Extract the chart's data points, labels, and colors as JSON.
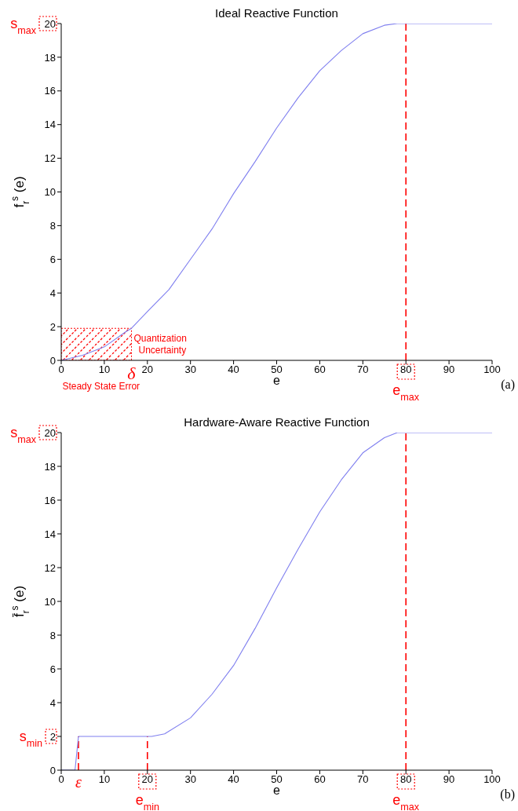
{
  "chart_data": [
    {
      "type": "line",
      "title": "Ideal Reactive Function",
      "xlabel": "e",
      "ylabel": "f$_{r}$$^{s}$ (e)",
      "color": "#7f7fef",
      "marker": "none",
      "line_style": "solid",
      "x": [
        0,
        5,
        10,
        15,
        16.3,
        20,
        25,
        30,
        35,
        40,
        45,
        50,
        55,
        60,
        65,
        70,
        75,
        78,
        100
      ],
      "values": [
        0,
        0.3,
        0.8,
        1.7,
        1.9,
        2.9,
        4.2,
        6,
        7.8,
        9.9,
        11.8,
        13.8,
        15.6,
        17.2,
        18.4,
        19.4,
        19.9,
        20,
        20
      ],
      "xlim": [
        0,
        100
      ],
      "ylim": [
        0,
        20
      ],
      "xticks": [
        0,
        10,
        20,
        30,
        40,
        50,
        60,
        70,
        80,
        90,
        100
      ],
      "yticks": [
        0,
        2,
        4,
        6,
        8,
        10,
        12,
        14,
        16,
        18,
        20
      ],
      "ref_lines": [
        {
          "axis": "x",
          "value": 80,
          "label": "e$_{max}$",
          "color": "#ff0000",
          "line_style": "dashed"
        }
      ],
      "bands": [
        {
          "axis": "x",
          "from": 0,
          "to": 16.3,
          "label": "Steady State Error",
          "color": "#ff0000"
        }
      ],
      "annotations": [
        "s$_{max}$",
        "Quantization Uncertainty",
        {
          "text": "δ",
          "x": 16.3,
          "y": 0
        },
        "(a)"
      ]
    },
    {
      "type": "line",
      "title": "Hardware-Aware Reactive Function",
      "xlabel": "e",
      "ylabel": "f̄$_{r}$$^{s}$ (e)",
      "color": "#7f7fef",
      "marker": "none",
      "line_style": "solid",
      "x": [
        0,
        3.2,
        4,
        20,
        21,
        24,
        30,
        35,
        40,
        45,
        50,
        55,
        60,
        65,
        70,
        75,
        78,
        100
      ],
      "values": [
        0,
        0,
        2,
        2,
        2,
        2.15,
        3.1,
        4.5,
        6.2,
        8.4,
        10.8,
        13.1,
        15.3,
        17.2,
        18.8,
        19.7,
        20,
        20
      ],
      "xlim": [
        0,
        100
      ],
      "ylim": [
        0,
        20
      ],
      "xticks": [
        0,
        10,
        20,
        30,
        40,
        50,
        60,
        70,
        80,
        90,
        100
      ],
      "yticks": [
        0,
        2,
        4,
        6,
        8,
        10,
        12,
        14,
        16,
        18,
        20
      ],
      "ref_lines": [
        {
          "axis": "x",
          "value": 4,
          "label": "ε",
          "color": "#ff0000",
          "line_style": "dashed"
        },
        {
          "axis": "x",
          "value": 20,
          "label": "e$_{min}$",
          "color": "#ff0000",
          "line_style": "dashed"
        },
        {
          "axis": "x",
          "value": 80,
          "label": "e$_{max}$",
          "color": "#ff0000",
          "line_style": "dashed"
        }
      ],
      "annotations": [
        "s$_{max}$",
        "s$_{min}$",
        "(b)"
      ]
    }
  ]
}
